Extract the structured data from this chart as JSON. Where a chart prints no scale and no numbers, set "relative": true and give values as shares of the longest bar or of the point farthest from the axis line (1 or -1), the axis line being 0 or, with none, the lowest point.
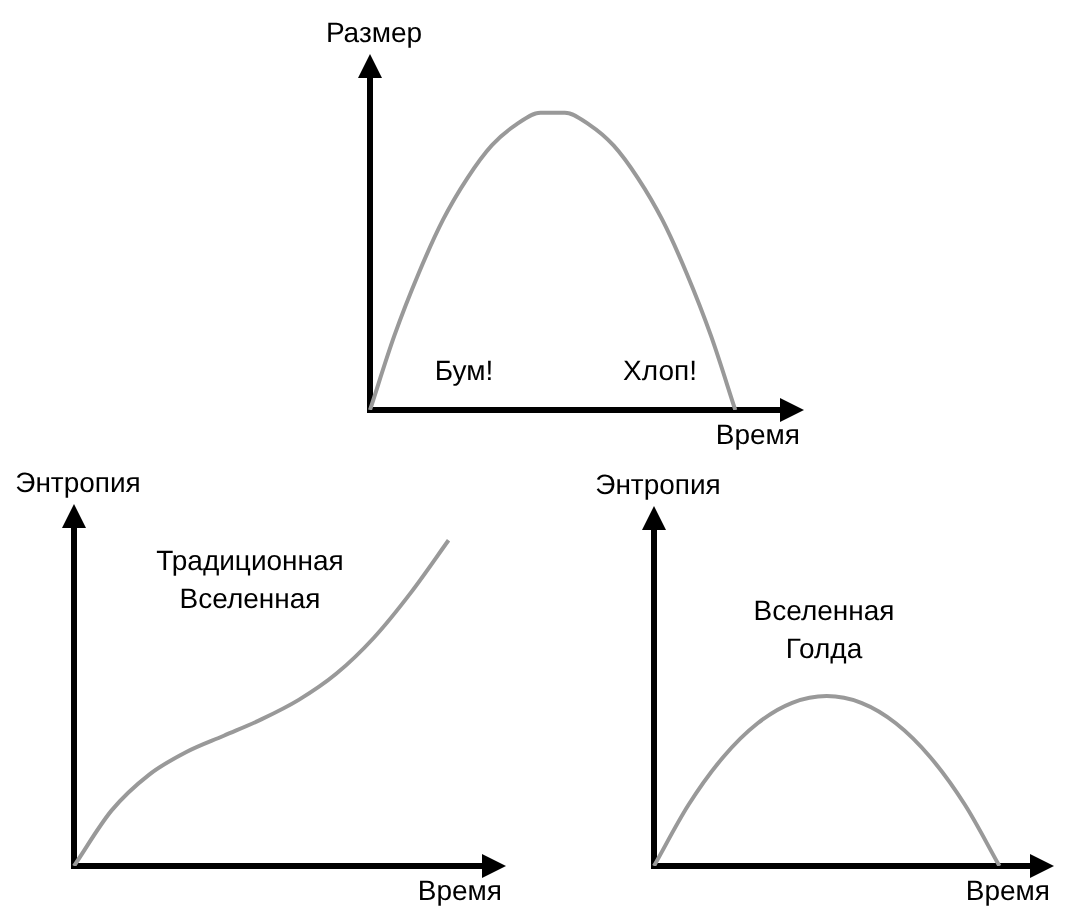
{
  "chart_data": [
    {
      "type": "line",
      "relative": true,
      "ylabel": "Размер",
      "xlabel": "Время",
      "annotations": [
        "Бум!",
        "Хлоп!"
      ],
      "categories": [
        null,
        null,
        null,
        null,
        null,
        null,
        null,
        null,
        null,
        null,
        null,
        null,
        null,
        null,
        null,
        null,
        null,
        null
      ],
      "series": [
        {
          "color": "#999999",
          "values": [
            0,
            0.25,
            0.46,
            0.64,
            0.78,
            0.89,
            0.96,
            1,
            1,
            0.96,
            0.89,
            0.78,
            0.64,
            0.46,
            0.25,
            0,
            null,
            null
          ]
        }
      ],
      "legend": false,
      "grid": false
    },
    {
      "type": "line",
      "relative": true,
      "ylabel": "Энтропия",
      "xlabel": "Время",
      "annotations": [
        "Традиционная Вселенная"
      ],
      "categories": [
        null,
        null,
        null,
        null,
        null,
        null,
        null,
        null,
        null,
        null,
        null,
        null
      ],
      "series": [
        {
          "color": "#999999",
          "values": [
            0,
            0.17,
            0.28,
            0.35,
            0.4,
            0.45,
            0.51,
            0.59,
            0.7,
            0.84,
            1,
            null
          ]
        }
      ],
      "legend": false,
      "grid": false
    },
    {
      "type": "line",
      "relative": true,
      "ylabel": "Энтропия",
      "xlabel": "Время",
      "annotations": [
        "Вселенная Голда"
      ],
      "categories": [
        null,
        null,
        null,
        null,
        null,
        null,
        null,
        null,
        null,
        null,
        null,
        null
      ],
      "series": [
        {
          "color": "#999999",
          "values": [
            0,
            0.36,
            0.64,
            0.84,
            0.96,
            1,
            0.96,
            0.84,
            0.64,
            0.36,
            0,
            null
          ]
        }
      ],
      "legend": false,
      "grid": false
    }
  ]
}
